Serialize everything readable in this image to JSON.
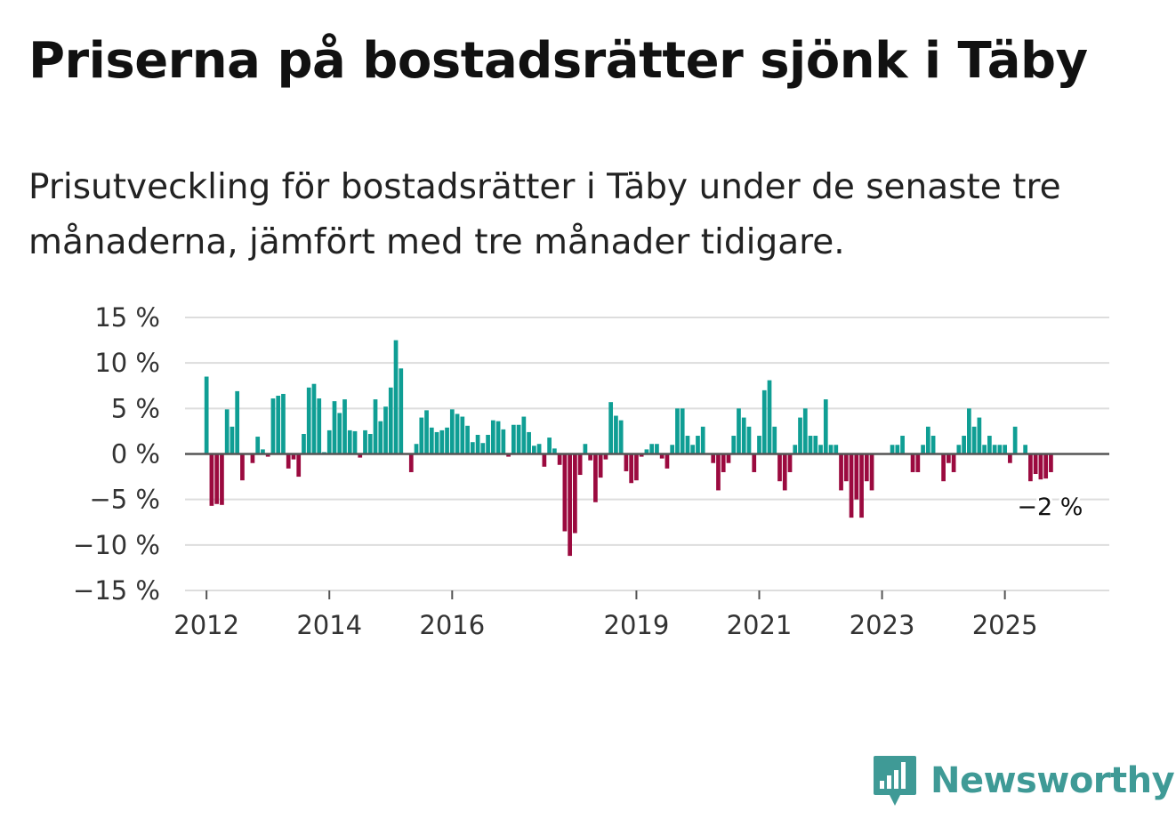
{
  "title": "Priserna på bostadsrätter sjönk i Täby",
  "subtitle": "Prisutveckling för bostadsrätter i Täby under de senaste tre månaderna, jämfört med tre månader tidigare.",
  "logo": {
    "text": "Newsworthy",
    "icon": "newsworthy-logo-icon"
  },
  "colors": {
    "positive": "#0f9e94",
    "negative": "#9b0a3f",
    "grid": "#dddddd",
    "zero": "#555555",
    "brand": "#3f9a96"
  },
  "chart_data": {
    "type": "bar",
    "title": "Priserna på bostadsrätter sjönk i Täby",
    "xlabel": "",
    "ylabel": "",
    "ylim": [
      -15,
      15
    ],
    "yticks": [
      15,
      10,
      5,
      0,
      -5,
      -10,
      -15
    ],
    "ytick_labels": [
      "15 %",
      "10 %",
      "5 %",
      "0 %",
      "−5 %",
      "−10 %",
      "−15 %"
    ],
    "x_start": 2012.0,
    "x_step": 0.0833333,
    "x_range": [
      2011.65,
      2026.7
    ],
    "xticks": [
      2012,
      2014,
      2016,
      2019,
      2021,
      2023,
      2025
    ],
    "xtick_labels": [
      "2012",
      "2014",
      "2016",
      "2019",
      "2021",
      "2023",
      "2025"
    ],
    "values": [
      8.5,
      -5.7,
      -5.5,
      -5.6,
      4.9,
      3.0,
      6.9,
      -2.9,
      0,
      -1.0,
      1.9,
      0.5,
      -0.3,
      6.1,
      6.4,
      6.6,
      -1.6,
      -0.6,
      -2.5,
      2.2,
      7.3,
      7.7,
      6.1,
      0.2,
      2.6,
      5.8,
      4.5,
      6.0,
      2.6,
      2.5,
      -0.4,
      2.6,
      2.2,
      6.0,
      3.6,
      5.2,
      7.3,
      12.5,
      9.4,
      0,
      -2.0,
      1.1,
      4.0,
      4.8,
      2.9,
      2.4,
      2.6,
      2.9,
      4.9,
      4.4,
      4.1,
      3.1,
      1.3,
      2.1,
      1.2,
      2.1,
      3.7,
      3.6,
      2.7,
      -0.3,
      3.2,
      3.2,
      4.1,
      2.4,
      0.9,
      1.1,
      -1.4,
      1.8,
      0.6,
      -1.2,
      -8.5,
      -11.2,
      -8.7,
      -2.3,
      1.1,
      -0.7,
      -5.3,
      -2.6,
      -0.6,
      5.7,
      4.2,
      3.7,
      -1.9,
      -3.2,
      -2.9,
      -0.3,
      0.5,
      1.1,
      1.1,
      -0.5,
      -1.6,
      1.0,
      5.0,
      5.0,
      2.0,
      1.0,
      2.0,
      3.0,
      0,
      -1.0,
      -4.0,
      -2.0,
      -1.0,
      2.0,
      5.0,
      4.0,
      3.0,
      -2.0,
      2.0,
      7.0,
      8.1,
      3.0,
      -3.0,
      -4.0,
      -2.0,
      1.0,
      4.0,
      5.0,
      2.0,
      2.0,
      1.0,
      6.0,
      1.0,
      1.0,
      -4.0,
      -3.0,
      -7.0,
      -5.0,
      -7.0,
      -3.0,
      -4.0,
      0,
      0,
      0,
      1.0,
      1.0,
      2.0,
      0,
      -2.0,
      -2.0,
      1.0,
      3.0,
      2.0,
      0,
      -3.0,
      -1.0,
      -2.0,
      1.0,
      2.0,
      5.0,
      3.0,
      4.0,
      1.0,
      2.0,
      1.0,
      1.0,
      1.0,
      -1.0,
      3.0,
      0,
      1.0,
      -3.0,
      -2.2,
      -2.8,
      -2.7,
      -2.0
    ],
    "annotation": {
      "text": "−2 %",
      "value": -2
    }
  }
}
